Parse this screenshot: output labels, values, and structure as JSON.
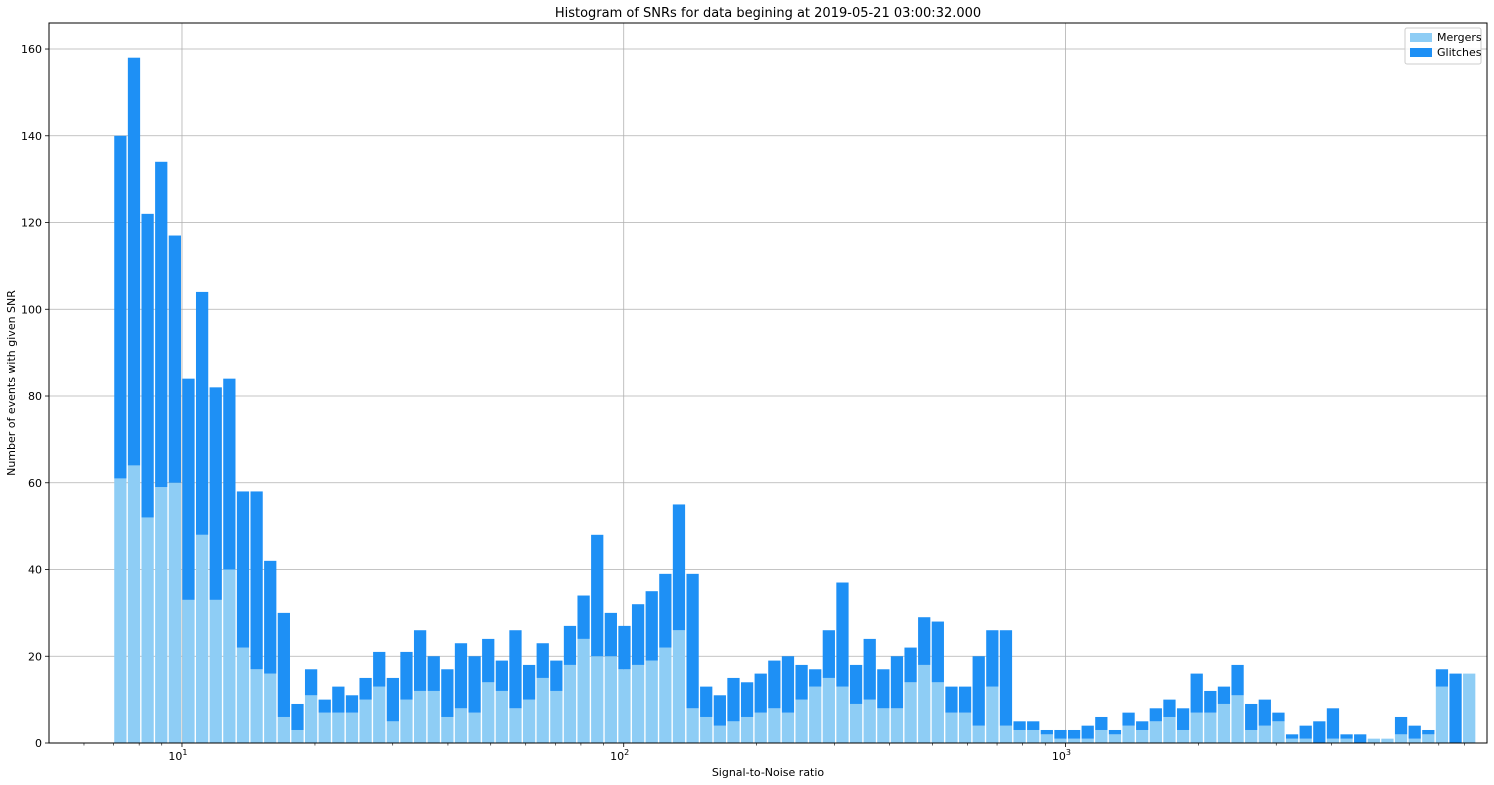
{
  "chart_data": {
    "type": "bar",
    "stacked": true,
    "title": "Histogram of SNRs for data begining at 2019-05-21 03:00:32.000",
    "xlabel": "Signal-to-Noise ratio",
    "ylabel": "Number of events with given SNR",
    "xscale": "log",
    "xlim": [
      5.0,
      9000
    ],
    "ylim": [
      0,
      166
    ],
    "x_tick_labels": [
      {
        "value": 10,
        "base": "10",
        "exp": "1"
      },
      {
        "value": 100,
        "base": "10",
        "exp": "2"
      },
      {
        "value": 1000,
        "base": "10",
        "exp": "3"
      }
    ],
    "y_ticks": [
      0,
      20,
      40,
      60,
      80,
      100,
      120,
      140,
      160
    ],
    "grid": true,
    "legend_position": "top-right",
    "bins": {
      "start": 7.0,
      "ratio": 1.0736,
      "count": 100
    },
    "series": [
      {
        "name": "Mergers",
        "color": "#8ecdf5",
        "values": [
          61,
          64,
          52,
          59,
          60,
          33,
          48,
          33,
          40,
          22,
          17,
          16,
          6,
          3,
          11,
          7,
          7,
          7,
          10,
          13,
          5,
          10,
          12,
          12,
          6,
          8,
          7,
          14,
          12,
          8,
          10,
          15,
          12,
          18,
          24,
          20,
          20,
          17,
          18,
          19,
          22,
          26,
          8,
          6,
          4,
          5,
          6,
          7,
          8,
          7,
          10,
          13,
          15,
          13,
          9,
          10,
          8,
          8,
          14,
          18,
          14,
          7,
          7,
          4,
          13,
          4,
          3,
          3,
          2,
          1,
          1,
          1,
          3,
          2,
          4,
          3,
          5,
          6,
          3,
          7,
          7,
          9,
          11,
          3,
          4,
          5,
          1,
          1,
          0,
          1,
          1,
          0,
          1,
          1,
          2,
          1,
          2,
          13,
          0,
          16
        ]
      },
      {
        "name": "Glitches",
        "color": "#1e90f5",
        "values": [
          79,
          94,
          70,
          75,
          57,
          51,
          56,
          49,
          44,
          36,
          41,
          26,
          24,
          6,
          6,
          3,
          6,
          4,
          5,
          8,
          10,
          11,
          14,
          8,
          11,
          15,
          13,
          10,
          7,
          18,
          8,
          8,
          7,
          9,
          10,
          28,
          10,
          10,
          14,
          16,
          17,
          29,
          31,
          7,
          7,
          10,
          8,
          9,
          11,
          13,
          8,
          4,
          11,
          24,
          9,
          14,
          9,
          12,
          8,
          11,
          14,
          6,
          6,
          16,
          13,
          22,
          2,
          2,
          1,
          2,
          2,
          3,
          3,
          1,
          3,
          2,
          3,
          4,
          5,
          9,
          5,
          4,
          7,
          6,
          6,
          2,
          1,
          3,
          5,
          7,
          1,
          2,
          0,
          0,
          4,
          3,
          1,
          4,
          16,
          0
        ]
      }
    ]
  }
}
